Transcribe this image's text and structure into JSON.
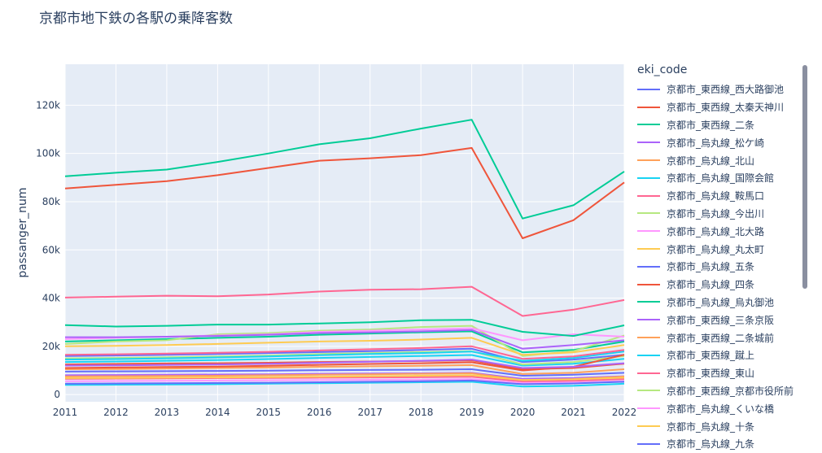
{
  "chart_data": {
    "type": "line",
    "title": "京都市地下鉄の各駅の乗降客数",
    "xlabel": "",
    "ylabel": "passanger_num",
    "x": [
      2011,
      2012,
      2013,
      2014,
      2015,
      2016,
      2017,
      2018,
      2019,
      2020,
      2021,
      2022
    ],
    "xlim": [
      2011,
      2022
    ],
    "ylim": [
      -3000,
      137000
    ],
    "yticks": [
      0,
      20000,
      40000,
      60000,
      80000,
      100000,
      120000
    ],
    "ytick_labels": [
      "0",
      "20k",
      "40k",
      "60k",
      "80k",
      "100k",
      "120k"
    ],
    "legend_title": "eki_code",
    "series": [
      {
        "name": "京都市_東西線_西大路御池",
        "color": "#636efa",
        "values": [
          9500,
          9600,
          9700,
          9800,
          9900,
          10100,
          10200,
          10300,
          10500,
          7800,
          8200,
          9000
        ]
      },
      {
        "name": "京都市_東西線_太秦天神川",
        "color": "#EF553B",
        "values": [
          12500,
          12700,
          12900,
          13000,
          13200,
          13500,
          13700,
          13900,
          14200,
          10500,
          11000,
          12800
        ]
      },
      {
        "name": "京都市_東西線_二条",
        "color": "#00cc96",
        "values": [
          22000,
          22500,
          23000,
          23500,
          24000,
          24800,
          25300,
          25800,
          26200,
          17500,
          18500,
          22000
        ]
      },
      {
        "name": "京都市_烏丸線_松ケ崎",
        "color": "#ab63fa",
        "values": [
          8000,
          8100,
          8200,
          8300,
          8400,
          8600,
          8700,
          8800,
          9000,
          6500,
          6800,
          7600
        ]
      },
      {
        "name": "京都市_烏丸線_北山",
        "color": "#FFA15A",
        "values": [
          10500,
          10600,
          10800,
          11000,
          11200,
          11500,
          11700,
          11900,
          12200,
          8500,
          9000,
          10500
        ]
      },
      {
        "name": "京都市_烏丸線_国際会館",
        "color": "#19d3f3",
        "values": [
          13500,
          13700,
          14000,
          14300,
          14700,
          15200,
          15600,
          16000,
          16400,
          12000,
          12800,
          14800
        ]
      },
      {
        "name": "京都市_烏丸線_鞍馬口",
        "color": "#FF6692",
        "values": [
          6500,
          6600,
          6700,
          6800,
          6900,
          7000,
          7100,
          7200,
          7400,
          5400,
          5700,
          6400
        ]
      },
      {
        "name": "京都市_烏丸線_今出川",
        "color": "#B6E880",
        "values": [
          21000,
          22000,
          22500,
          25000,
          25500,
          26500,
          27000,
          28000,
          28500,
          16000,
          18000,
          24500
        ]
      },
      {
        "name": "京都市_烏丸線_北大路",
        "color": "#FF97FF",
        "values": [
          23000,
          23500,
          24000,
          24500,
          25000,
          26000,
          26500,
          27000,
          27500,
          22500,
          25000,
          24000
        ]
      },
      {
        "name": "京都市_烏丸線_丸太町",
        "color": "#FECB52",
        "values": [
          20000,
          20200,
          20500,
          21000,
          21500,
          22000,
          22300,
          22800,
          23500,
          16500,
          17500,
          20500
        ]
      },
      {
        "name": "京都市_烏丸線_五条",
        "color": "#636efa",
        "values": [
          16000,
          16200,
          16500,
          16800,
          17200,
          17600,
          18000,
          18500,
          19000,
          13500,
          14500,
          16500
        ]
      },
      {
        "name": "京都市_烏丸線_四条",
        "color": "#EF553B",
        "values": [
          85500,
          87000,
          88500,
          91000,
          94000,
          97000,
          98000,
          99300,
          102300,
          64800,
          72300,
          88000
        ]
      },
      {
        "name": "京都市_烏丸線_烏丸御池",
        "color": "#00cc96",
        "values": [
          90500,
          92000,
          93300,
          96500,
          100000,
          103800,
          106300,
          110300,
          114000,
          73000,
          78500,
          92500
        ]
      },
      {
        "name": "京都市_東西線_三条京阪",
        "color": "#ab63fa",
        "values": [
          23800,
          23800,
          24000,
          24300,
          24800,
          25500,
          25800,
          26200,
          26800,
          19000,
          20500,
          22500
        ]
      },
      {
        "name": "京都市_東西線_二条城前",
        "color": "#FFA15A",
        "values": [
          7500,
          7600,
          7700,
          7800,
          8000,
          8200,
          8400,
          8600,
          8800,
          6000,
          6400,
          7500
        ]
      },
      {
        "name": "京都市_東西線_蹴上",
        "color": "#19d3f3",
        "values": [
          4000,
          4100,
          4200,
          4300,
          4500,
          4700,
          4900,
          5100,
          5300,
          3300,
          3600,
          4500
        ]
      },
      {
        "name": "京都市_東西線_東山",
        "color": "#FF6692",
        "values": [
          40200,
          40600,
          41000,
          40800,
          41500,
          42700,
          43500,
          43700,
          44700,
          32600,
          35200,
          39200
        ]
      },
      {
        "name": "京都市_東西線_京都市役所前",
        "color": "#B6E880",
        "values": [
          15000,
          15200,
          15500,
          15800,
          16200,
          16800,
          17200,
          17600,
          18000,
          12500,
          13500,
          16000
        ]
      },
      {
        "name": "京都市_烏丸線_くいな橋",
        "color": "#FF97FF",
        "values": [
          5500,
          5600,
          5700,
          5800,
          5900,
          6000,
          6100,
          6200,
          6400,
          4800,
          5000,
          5600
        ]
      },
      {
        "name": "京都市_烏丸線_十条",
        "color": "#FECB52",
        "values": [
          6800,
          6900,
          7000,
          7100,
          7200,
          7400,
          7600,
          7800,
          8000,
          6000,
          6300,
          7000
        ]
      },
      {
        "name": "京都市_烏丸線_九条",
        "color": "#636efa",
        "values": [
          4500,
          4600,
          4700,
          4800,
          4900,
          5100,
          5300,
          5500,
          5800,
          4300,
          4600,
          5300
        ]
      },
      {
        "name": "",
        "color": "#EF553B",
        "values": [
          11000,
          11200,
          11400,
          11600,
          11900,
          12300,
          12700,
          13000,
          13400,
          10000,
          11500,
          16500
        ]
      },
      {
        "name": "",
        "color": "#00cc96",
        "values": [
          28800,
          28200,
          28500,
          29000,
          29000,
          29500,
          30000,
          30800,
          31000,
          26000,
          24300,
          28700
        ]
      },
      {
        "name": "",
        "color": "#ab63fa",
        "values": [
          12000,
          12100,
          12300,
          12500,
          12800,
          13200,
          13600,
          14000,
          14500,
          11000,
          11500,
          13000
        ]
      },
      {
        "name": "",
        "color": "#19d3f3",
        "values": [
          14500,
          14700,
          15000,
          15400,
          15800,
          16300,
          16800,
          17200,
          17800,
          14000,
          15200,
          17800
        ]
      },
      {
        "name": "",
        "color": "#FF6692",
        "values": [
          16500,
          16700,
          17000,
          17300,
          17700,
          18300,
          18800,
          19300,
          20000,
          14800,
          15800,
          18500
        ]
      }
    ]
  }
}
